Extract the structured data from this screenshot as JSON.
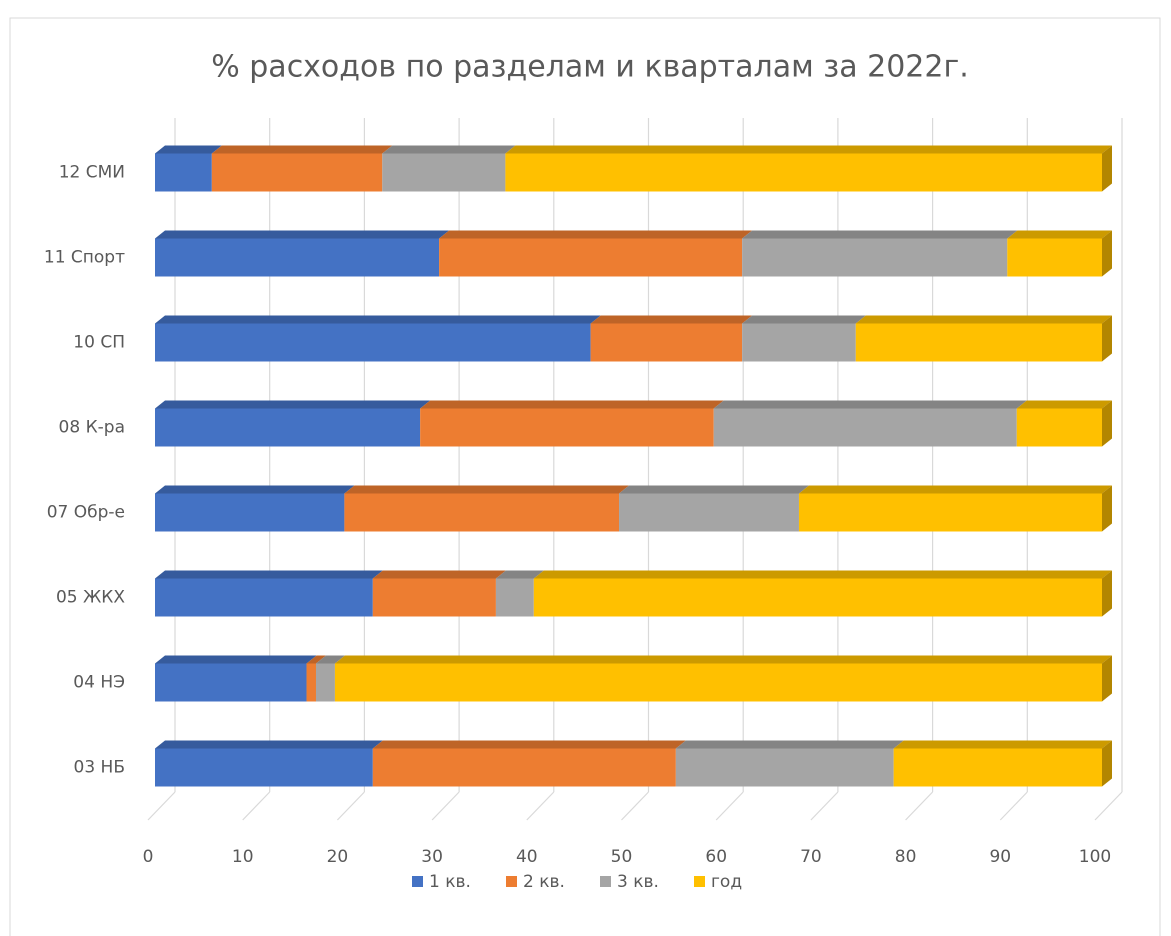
{
  "chart_data": {
    "type": "bar3d_stacked_horizontal",
    "title": "% расходов по разделам и кварталам за 2022г.",
    "categories": [
      "03 НБ",
      "04 НЭ",
      "05 ЖКХ",
      "07 Обр-е",
      "08 К-ра",
      "10 СП",
      "11 Спорт",
      "12 СМИ"
    ],
    "series": [
      {
        "name": "1 кв.",
        "color": "#4472c4",
        "values": [
          23,
          16,
          23,
          20,
          28,
          46,
          30,
          6
        ]
      },
      {
        "name": "2 кв.",
        "color": "#ed7d31",
        "values": [
          32,
          1,
          13,
          29,
          31,
          16,
          32,
          18
        ]
      },
      {
        "name": "3 кв.",
        "color": "#a5a5a5",
        "values": [
          23,
          2,
          4,
          19,
          32,
          12,
          28,
          13
        ]
      },
      {
        "name": "год",
        "color": "#ffc000",
        "values": [
          22,
          81,
          60,
          32,
          9,
          26,
          10,
          63
        ]
      }
    ],
    "xlim": [
      0,
      100
    ],
    "xticks": [
      0,
      10,
      20,
      30,
      40,
      50,
      60,
      70,
      80,
      90,
      100
    ],
    "grid": true,
    "legend": "bottom"
  }
}
